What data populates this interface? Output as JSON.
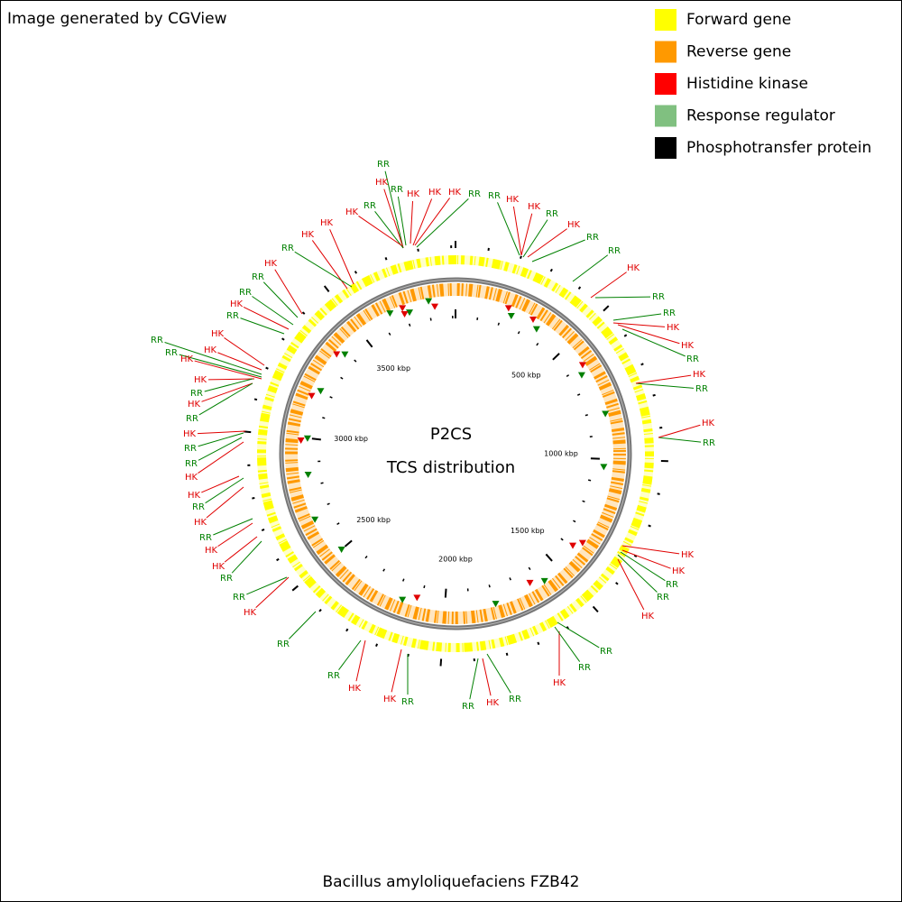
{
  "header": {
    "credit": "Image generated by CGView"
  },
  "legend": [
    {
      "label": "Forward gene",
      "color": "#ffff00"
    },
    {
      "label": "Reverse gene",
      "color": "#ff9900"
    },
    {
      "label": "Histidine kinase",
      "color": "#ff0000"
    },
    {
      "label": "Response regulator",
      "color": "#80c080"
    },
    {
      "label": "Phosphotransfer protein",
      "color": "#000000"
    }
  ],
  "map": {
    "title": "P2CS",
    "subtitle": "TCS distribution",
    "ticks": [
      "500 kbp",
      "1000 kbp",
      "1500 kbp",
      "2000 kbp",
      "2500 kbp",
      "3000 kbp",
      "3500 kbp"
    ],
    "labels": [
      {
        "text": "RR",
        "color": "#008000"
      },
      {
        "text": "HK",
        "color": "#e00000"
      },
      {
        "text": "RR",
        "color": "#008000"
      },
      {
        "text": "HK",
        "color": "#e00000"
      },
      {
        "text": "HK",
        "color": "#e00000"
      },
      {
        "text": "HK",
        "color": "#e00000"
      },
      {
        "text": "RR",
        "color": "#008000"
      },
      {
        "text": "RR",
        "color": "#008000"
      },
      {
        "text": "HK",
        "color": "#e00000"
      },
      {
        "text": "HK",
        "color": "#e00000"
      },
      {
        "text": "HK",
        "color": "#e00000"
      },
      {
        "text": "RR",
        "color": "#008000"
      },
      {
        "text": "HK",
        "color": "#e00000"
      },
      {
        "text": "RR",
        "color": "#008000"
      },
      {
        "text": "RR",
        "color": "#008000"
      },
      {
        "text": "HK",
        "color": "#e00000"
      },
      {
        "text": "RR",
        "color": "#008000"
      },
      {
        "text": "HK",
        "color": "#e00000"
      },
      {
        "text": "HK",
        "color": "#e00000"
      },
      {
        "text": "RR",
        "color": "#008000"
      },
      {
        "text": "RR",
        "color": "#008000"
      },
      {
        "text": "HK",
        "color": "#e00000"
      },
      {
        "text": "HK",
        "color": "#e00000"
      },
      {
        "text": "RR",
        "color": "#008000"
      },
      {
        "text": "HK",
        "color": "#e00000"
      },
      {
        "text": "RR",
        "color": "#008000"
      },
      {
        "text": "HK",
        "color": "#e00000"
      },
      {
        "text": "RR",
        "color": "#008000"
      },
      {
        "text": "RR",
        "color": "#008000"
      },
      {
        "text": "HK",
        "color": "#e00000"
      },
      {
        "text": "HK",
        "color": "#e00000"
      },
      {
        "text": "RR",
        "color": "#008000"
      },
      {
        "text": "HK",
        "color": "#e00000"
      },
      {
        "text": "RR",
        "color": "#008000"
      },
      {
        "text": "HK",
        "color": "#e00000"
      },
      {
        "text": "HK",
        "color": "#e00000"
      },
      {
        "text": "RR",
        "color": "#008000"
      },
      {
        "text": "RR",
        "color": "#008000"
      },
      {
        "text": "HK",
        "color": "#e00000"
      },
      {
        "text": "RR",
        "color": "#008000"
      },
      {
        "text": "RR",
        "color": "#008000"
      },
      {
        "text": "HK",
        "color": "#e00000"
      },
      {
        "text": "HK",
        "color": "#e00000"
      },
      {
        "text": "RR",
        "color": "#008000"
      },
      {
        "text": "RR",
        "color": "#008000"
      },
      {
        "text": "HK",
        "color": "#e00000"
      },
      {
        "text": "RR",
        "color": "#008000"
      },
      {
        "text": "HK",
        "color": "#e00000"
      },
      {
        "text": "RR",
        "color": "#008000"
      },
      {
        "text": "RR",
        "color": "#008000"
      },
      {
        "text": "HK",
        "color": "#e00000"
      },
      {
        "text": "RR",
        "color": "#008000"
      },
      {
        "text": "RR",
        "color": "#008000"
      },
      {
        "text": "HK",
        "color": "#e00000"
      },
      {
        "text": "HK",
        "color": "#e00000"
      },
      {
        "text": "RR",
        "color": "#008000"
      },
      {
        "text": "HK",
        "color": "#e00000"
      },
      {
        "text": "RR",
        "color": "#008000"
      },
      {
        "text": "HK",
        "color": "#e00000"
      },
      {
        "text": "RR",
        "color": "#008000"
      },
      {
        "text": "HK",
        "color": "#e00000"
      },
      {
        "text": "HK",
        "color": "#e00000"
      },
      {
        "text": "RR",
        "color": "#008000"
      },
      {
        "text": "RR",
        "color": "#008000"
      },
      {
        "text": "HK",
        "color": "#e00000"
      },
      {
        "text": "RR",
        "color": "#008000"
      },
      {
        "text": "RR",
        "color": "#008000"
      },
      {
        "text": "HK",
        "color": "#e00000"
      },
      {
        "text": "RR",
        "color": "#008000"
      },
      {
        "text": "HK",
        "color": "#e00000"
      },
      {
        "text": "HK",
        "color": "#e00000"
      },
      {
        "text": "RR",
        "color": "#008000"
      }
    ]
  },
  "footer": {
    "organism": "Bacillus amyloliquefaciens FZB42"
  }
}
